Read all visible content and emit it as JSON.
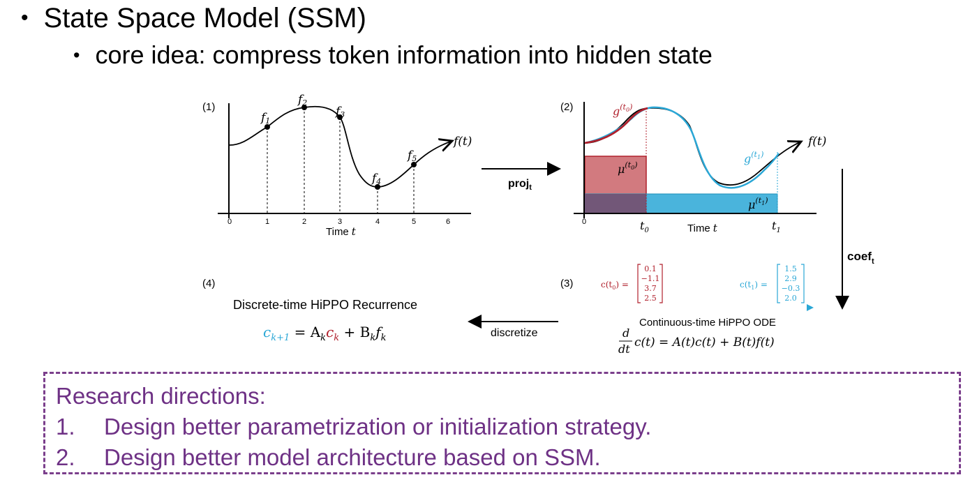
{
  "slide": {
    "title": "State Space Model (SSM)",
    "subbullet": "core idea: compress token information into hidden state",
    "bullet_glyph": "•"
  },
  "figure": {
    "panel1": {
      "label": "(1)",
      "func": "f(t)",
      "samples": [
        "f",
        "f",
        "f",
        "f",
        "f"
      ],
      "sample_idx": [
        "1",
        "2",
        "3",
        "4",
        "5"
      ],
      "ticks": [
        "0",
        "1",
        "2",
        "3",
        "4",
        "5",
        "6"
      ],
      "xlabel_word": "Time",
      "xlabel_var": "t"
    },
    "proj": {
      "label": "proj",
      "sub": "t"
    },
    "panel2": {
      "label": "(2)",
      "func": "f(t)",
      "g0": "g",
      "g0_sup": "(t",
      "g1": "g",
      "g1_sup": "(t",
      "mu0": "μ",
      "mu1": "μ",
      "sup_close": ")",
      "sub0": "0",
      "sub1": "1",
      "tick0": "0",
      "t0": "t",
      "t1": "t",
      "xlabel_word": "Time",
      "xlabel_var": "t"
    },
    "coef": {
      "label": "coef",
      "sub": "t"
    },
    "panel3": {
      "label": "(3)",
      "c0_label": "c(t",
      "c0_close": ") =",
      "c0_values": [
        "0.1",
        "−1.1",
        "3.7",
        "2.5"
      ],
      "c1_label": "c(t",
      "c1_close": ") =",
      "c1_values": [
        "1.5",
        "2.9",
        "−0.3",
        "2.0"
      ],
      "ode_title": "Continuous-time HiPPO ODE",
      "ode_d": "d",
      "ode_dt": "dt",
      "ode_rhs": "c(t) = A(t)c(t) + B(t)f(t)"
    },
    "discretize": {
      "label": "discretize"
    },
    "panel4": {
      "label": "(4)",
      "title": "Discrete-time HiPPO Recurrence",
      "lhs_c": "c",
      "lhs_sub": "k+1",
      "eq": " = A",
      "k": "k",
      "c": "c",
      "plus": " + B",
      "f": "f"
    }
  },
  "research": {
    "heading": "Research directions:",
    "items": [
      {
        "num": "1.",
        "text": "Design better parametrization or initialization strategy."
      },
      {
        "num": "2.",
        "text": "Design better model architecture based on SSM."
      }
    ]
  },
  "colors": {
    "red": "#b0202c",
    "blue": "#2aa7d6",
    "purple_border": "#7b3f8c",
    "purple_text": "#6e3185"
  }
}
